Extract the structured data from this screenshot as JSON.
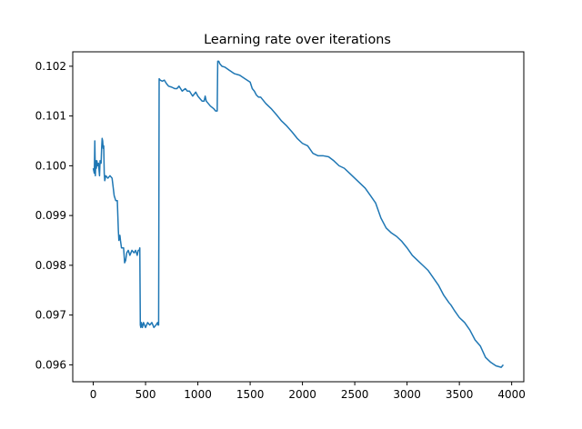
{
  "chart_data": {
    "type": "line",
    "title": "Learning rate over iterations",
    "xlabel": "",
    "ylabel": "",
    "xlim": [
      -196,
      4116
    ],
    "ylim": [
      0.09566,
      0.10229
    ],
    "xticks": [
      0,
      500,
      1000,
      1500,
      2000,
      2500,
      3000,
      3500,
      4000
    ],
    "xtick_labels": [
      "0",
      "500",
      "1000",
      "1500",
      "2000",
      "2500",
      "3000",
      "3500",
      "4000"
    ],
    "yticks": [
      0.096,
      0.097,
      0.098,
      0.099,
      0.1,
      0.101,
      0.102
    ],
    "ytick_labels": [
      "0.096",
      "0.097",
      "0.098",
      "0.099",
      "0.100",
      "0.101",
      "0.102"
    ],
    "grid": false,
    "legend": "none",
    "series": [
      {
        "color": "#1f77b4",
        "x": [
          0,
          10,
          15,
          20,
          25,
          30,
          35,
          40,
          50,
          60,
          65,
          70,
          75,
          80,
          85,
          90,
          95,
          100,
          105,
          110,
          120,
          140,
          160,
          180,
          200,
          215,
          220,
          230,
          240,
          245,
          250,
          255,
          260,
          270,
          280,
          290,
          300,
          310,
          320,
          335,
          350,
          370,
          390,
          405,
          420,
          430,
          440,
          445,
          450,
          455,
          460,
          470,
          480,
          500,
          520,
          540,
          560,
          580,
          600,
          615,
          620,
          625,
          630,
          640,
          660,
          680,
          700,
          720,
          750,
          780,
          800,
          820,
          850,
          880,
          900,
          920,
          950,
          980,
          1000,
          1020,
          1040,
          1060,
          1070,
          1080,
          1100,
          1120,
          1150,
          1170,
          1185,
          1190,
          1200,
          1210,
          1230,
          1260,
          1300,
          1350,
          1400,
          1450,
          1500,
          1520,
          1540,
          1560,
          1580,
          1600,
          1650,
          1700,
          1750,
          1800,
          1850,
          1900,
          1950,
          2000,
          2050,
          2100,
          2150,
          2200,
          2250,
          2300,
          2350,
          2400,
          2450,
          2500,
          2550,
          2600,
          2650,
          2700,
          2750,
          2800,
          2850,
          2900,
          2950,
          3000,
          3050,
          3100,
          3150,
          3200,
          3250,
          3300,
          3350,
          3400,
          3420,
          3450,
          3500,
          3550,
          3600,
          3650,
          3700,
          3750,
          3800,
          3850,
          3900,
          3920
        ],
        "y": [
          0.09995,
          0.09985,
          0.1005,
          0.0998,
          0.1001,
          0.09995,
          0.1001,
          0.1,
          0.10005,
          0.0998,
          0.1001,
          0.10005,
          0.10005,
          0.10035,
          0.10055,
          0.1005,
          0.10035,
          0.1004,
          0.09985,
          0.0997,
          0.0998,
          0.09975,
          0.0998,
          0.09975,
          0.0994,
          0.0993,
          0.0993,
          0.0993,
          0.0987,
          0.0985,
          0.0986,
          0.0986,
          0.0985,
          0.09835,
          0.09835,
          0.09835,
          0.09805,
          0.0981,
          0.09825,
          0.0983,
          0.0982,
          0.0983,
          0.09825,
          0.0983,
          0.0982,
          0.0983,
          0.0983,
          0.09835,
          0.0968,
          0.09675,
          0.09685,
          0.09675,
          0.09685,
          0.09675,
          0.09685,
          0.0968,
          0.09685,
          0.09675,
          0.0968,
          0.09685,
          0.0968,
          0.0968,
          0.10175,
          0.10172,
          0.1017,
          0.10172,
          0.10165,
          0.1016,
          0.10158,
          0.10155,
          0.10155,
          0.1016,
          0.1015,
          0.10155,
          0.1015,
          0.1015,
          0.1014,
          0.10148,
          0.1014,
          0.10135,
          0.1013,
          0.1013,
          0.1014,
          0.1013,
          0.10125,
          0.1012,
          0.10115,
          0.1011,
          0.1011,
          0.1021,
          0.1021,
          0.10205,
          0.102,
          0.10198,
          0.10192,
          0.10185,
          0.10182,
          0.10175,
          0.10168,
          0.10155,
          0.1015,
          0.10142,
          0.10138,
          0.10138,
          0.10125,
          0.10115,
          0.10103,
          0.1009,
          0.1008,
          0.10068,
          0.10055,
          0.10045,
          0.1004,
          0.10025,
          0.1002,
          0.1002,
          0.10018,
          0.1001,
          0.1,
          0.09995,
          0.09985,
          0.09975,
          0.09965,
          0.09955,
          0.0994,
          0.09925,
          0.09895,
          0.09875,
          0.09865,
          0.09858,
          0.09848,
          0.09835,
          0.0982,
          0.0981,
          0.098,
          0.0979,
          0.09775,
          0.0976,
          0.0974,
          0.09725,
          0.0972,
          0.0971,
          0.09695,
          0.09685,
          0.0967,
          0.0965,
          0.09638,
          0.09615,
          0.09605,
          0.09598,
          0.09595,
          0.096
        ]
      }
    ]
  }
}
